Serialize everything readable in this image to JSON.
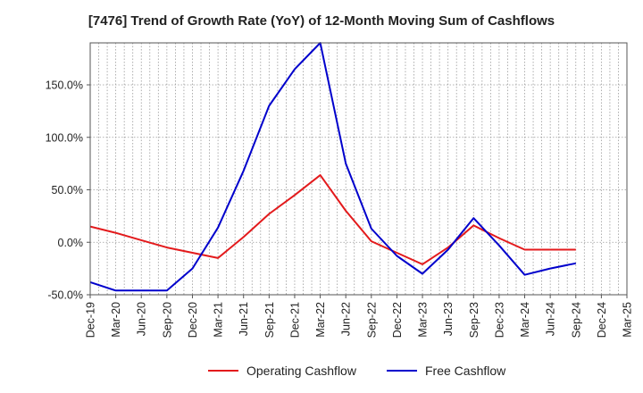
{
  "chart_data": {
    "type": "line",
    "title": "[7476]  Trend of Growth Rate (YoY) of 12-Month Moving Sum of Cashflows",
    "xlabel": "",
    "ylabel": "",
    "x": [
      "Dec-19",
      "Mar-20",
      "Jun-20",
      "Sep-20",
      "Dec-20",
      "Mar-21",
      "Jun-21",
      "Sep-21",
      "Dec-21",
      "Mar-22",
      "Jun-22",
      "Sep-22",
      "Dec-22",
      "Mar-23",
      "Jun-23",
      "Sep-23",
      "Dec-23",
      "Mar-24",
      "Jun-24",
      "Sep-24",
      "Dec-24",
      "Mar-25"
    ],
    "ylim": [
      -50,
      190
    ],
    "yticks": [
      -50,
      0,
      50,
      100,
      150
    ],
    "ytick_labels": [
      "-50.0%",
      "0.0%",
      "50.0%",
      "100.0%",
      "150.0%"
    ],
    "grid": true,
    "legend_position": "bottom",
    "series": [
      {
        "name": "Operating Cashflow",
        "color": "#e31a1c",
        "values": [
          15,
          9,
          2,
          -5,
          -10,
          -15,
          5,
          27,
          45,
          64,
          30,
          1,
          -10,
          -21,
          -5,
          16,
          4,
          -7,
          -7,
          -7,
          null,
          null
        ]
      },
      {
        "name": "Free Cashflow",
        "color": "#0000cc",
        "values": [
          -38,
          -46,
          -46,
          -46,
          -25,
          14,
          68,
          130,
          165,
          190,
          75,
          13,
          -13,
          -30,
          -7,
          23,
          -3,
          -31,
          -25,
          -20,
          null,
          null
        ]
      }
    ]
  }
}
